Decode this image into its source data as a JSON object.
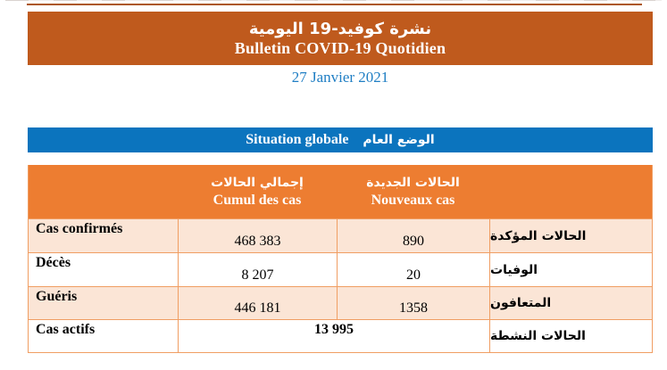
{
  "header": {
    "title_ar": "نشرة كوفيد-19 اليومية",
    "title_fr": "Bulletin COVID-19 Quotidien",
    "date": "27 Janvier 2021"
  },
  "section": {
    "title_fr": "Situation globale",
    "title_ar": "الوضع العام"
  },
  "table": {
    "columns": [
      {
        "ar": "إجمالي الحالات",
        "fr": "Cumul des cas"
      },
      {
        "ar": "الحالات الجديدة",
        "fr": "Nouveaux cas"
      }
    ],
    "rows": [
      {
        "label_fr": "Cas confirmés",
        "cumul": "468 383",
        "nouveaux": "890",
        "label_ar": "الحالات المؤكدة"
      },
      {
        "label_fr": "Décès",
        "cumul": "8 207",
        "nouveaux": "20",
        "label_ar": "الوفيات"
      },
      {
        "label_fr": "Guéris",
        "cumul": "446 181",
        "nouveaux": "1358",
        "label_ar": "المتعافون"
      },
      {
        "label_fr": "Cas actifs",
        "merged_value": "13 995",
        "label_ar": "الحالات النشطة"
      }
    ]
  },
  "colors": {
    "banner_orange": "#bf5a1d",
    "table_header_orange": "#ed7d31",
    "row_peach": "#fbe5d6",
    "table_border": "#f09e63",
    "section_bar_blue": "#0b74be",
    "date_blue": "#1f7ec4",
    "text": "#000000",
    "header_text": "#ffffff"
  }
}
